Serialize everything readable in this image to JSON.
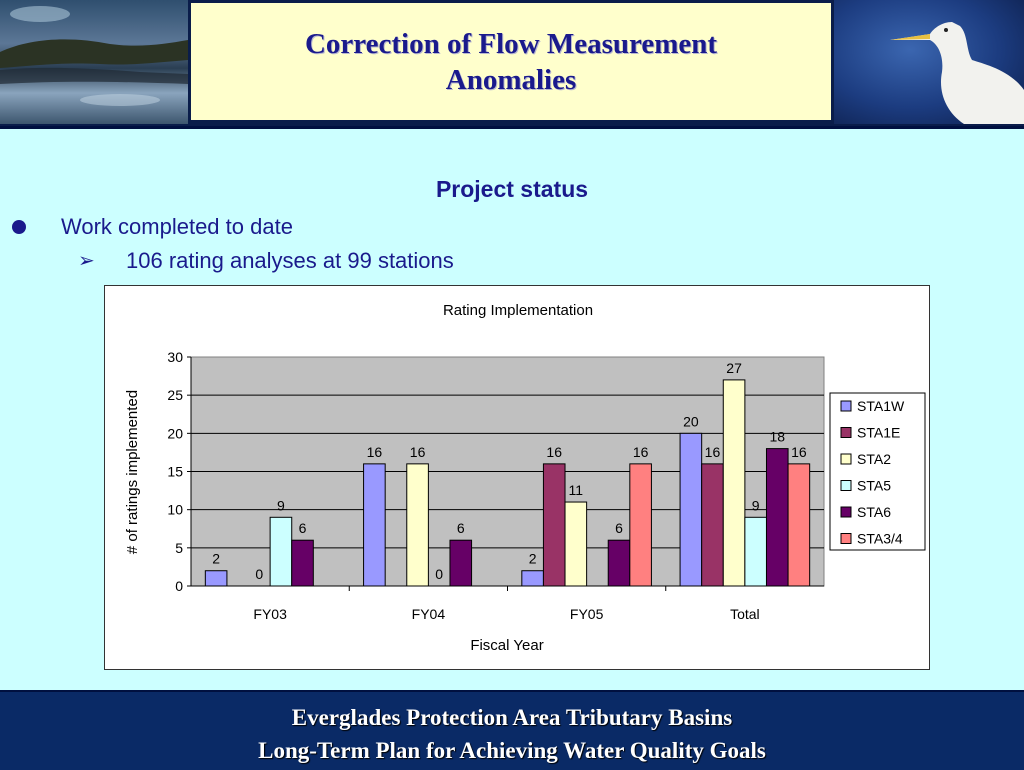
{
  "slide": {
    "title_line1": "Correction of Flow Measurement",
    "title_line2": "Anomalies",
    "section_heading": "Project status",
    "bullet1": "Work completed to date",
    "bullet2_marker": "➢",
    "bullet2": "106 rating analyses at 99 stations",
    "footer_line1": "Everglades Protection Area Tributary Basins",
    "footer_line2": "Long-Term Plan for Achieving Water Quality Goals"
  },
  "chart_data": {
    "type": "bar",
    "title": "Rating Implementation",
    "xlabel": "Fiscal Year",
    "ylabel": "# of ratings implemented",
    "ylim": [
      0,
      30
    ],
    "yticks": [
      0,
      5,
      10,
      15,
      20,
      25,
      30
    ],
    "categories": [
      "FY03",
      "FY04",
      "FY05",
      "Total"
    ],
    "series": [
      {
        "name": "STA1W",
        "color": "#9999ff",
        "values": [
          2,
          16,
          2,
          20
        ]
      },
      {
        "name": "STA1E",
        "color": "#993366",
        "values": [
          null,
          null,
          16,
          16
        ]
      },
      {
        "name": "STA2",
        "color": "#ffffcc",
        "values": [
          0,
          16,
          11,
          27
        ]
      },
      {
        "name": "STA5",
        "color": "#ccffff",
        "values": [
          9,
          0,
          null,
          9
        ]
      },
      {
        "name": "STA6",
        "color": "#660066",
        "values": [
          6,
          6,
          6,
          18
        ]
      },
      {
        "name": "STA3/4",
        "color": "#ff8080",
        "values": [
          null,
          null,
          16,
          16
        ]
      }
    ],
    "plot_background": "#c0c0c0",
    "grid": true,
    "legend_position": "right"
  }
}
